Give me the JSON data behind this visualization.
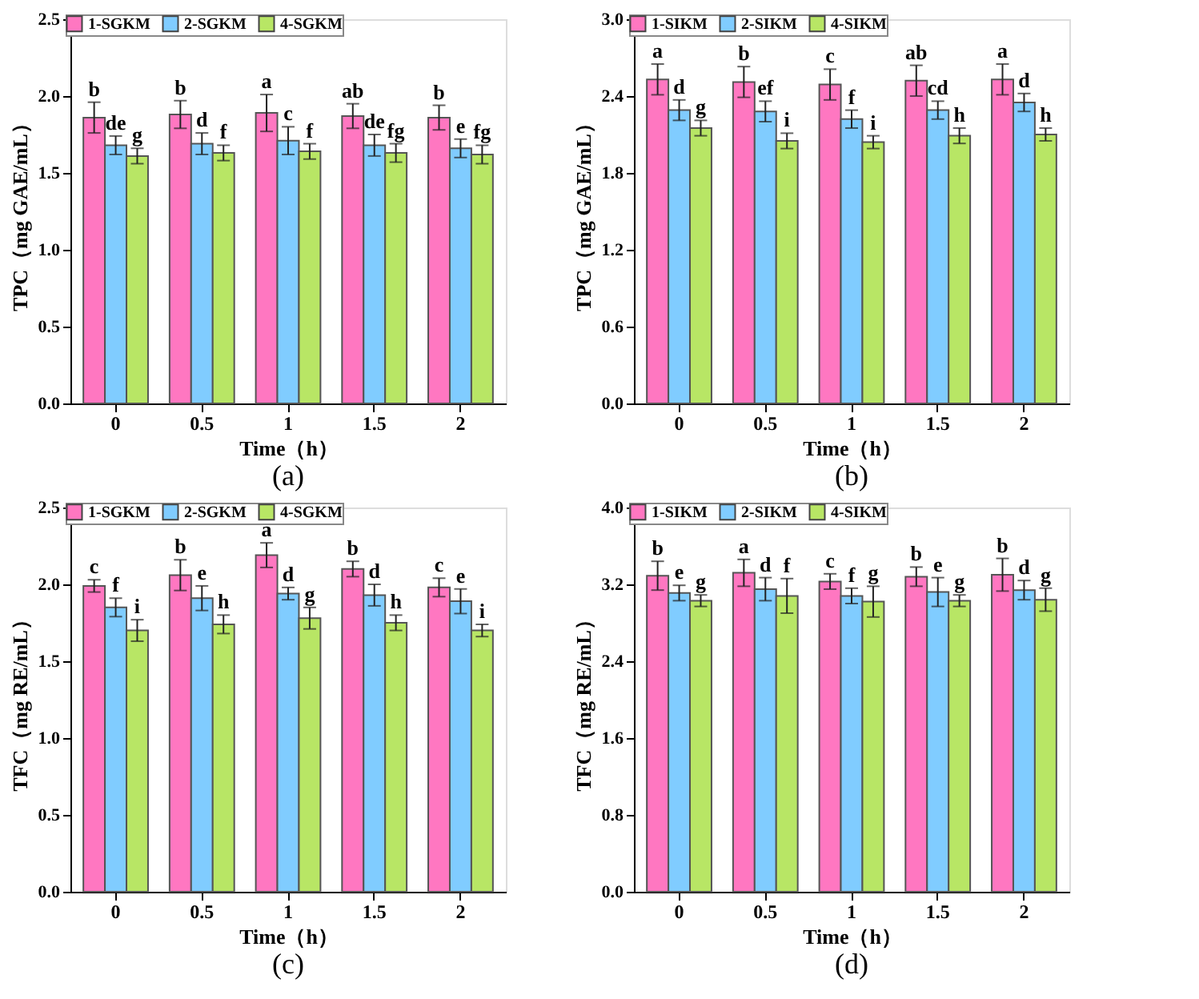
{
  "chart_data": [
    {
      "type": "bar",
      "xlabel": "Time（h）",
      "ylabel": "TPC（mg GAE/mL）",
      "categories": [
        "0",
        "0.5",
        "1",
        "1.5",
        "2"
      ],
      "ylim": [
        0,
        2.5
      ],
      "yticks": [
        {
          "value": 0,
          "label": "0.0"
        },
        0.5,
        {
          "value": 1,
          "label": "1.0"
        },
        1.5,
        {
          "value": 2,
          "label": "2.0"
        },
        2.5
      ],
      "grid": false,
      "legend": "top left",
      "annotations": [
        "(a)"
      ],
      "series": [
        {
          "name": "1-SGKM",
          "color": "#ff77c1",
          "values": [
            1.86,
            1.88,
            1.89,
            1.87,
            1.86
          ],
          "errors": [
            0.1,
            0.09,
            0.12,
            0.08,
            0.08
          ],
          "value_labels": [
            "b",
            "b",
            "a",
            "ab",
            "b"
          ]
        },
        {
          "name": "2-SGKM",
          "color": "#80ccff",
          "values": [
            1.68,
            1.69,
            1.71,
            1.68,
            1.66
          ],
          "errors": [
            0.06,
            0.07,
            0.09,
            0.07,
            0.06
          ],
          "value_labels": [
            "de",
            "d",
            "c",
            "de",
            "e"
          ]
        },
        {
          "name": "4-SGKM",
          "color": "#b8e665",
          "values": [
            1.61,
            1.63,
            1.64,
            1.63,
            1.62
          ],
          "errors": [
            0.05,
            0.05,
            0.05,
            0.06,
            0.06
          ],
          "value_labels": [
            "g",
            "f",
            "f",
            "fg",
            "fg"
          ]
        }
      ]
    },
    {
      "type": "bar",
      "xlabel": "Time（h）",
      "ylabel": "TPC（mg GAE/mL）",
      "categories": [
        "0",
        "0.5",
        "1",
        "1.5",
        "2"
      ],
      "ylim": [
        0,
        3.0
      ],
      "yticks": [
        {
          "value": 0,
          "label": "0.0"
        },
        0.6,
        1.2,
        1.8,
        2.4,
        {
          "value": 3,
          "label": "3.0"
        }
      ],
      "grid": false,
      "legend": "top left",
      "annotations": [
        "(b)"
      ],
      "series": [
        {
          "name": "1-SIKM",
          "color": "#ff77c1",
          "values": [
            2.53,
            2.51,
            2.49,
            2.52,
            2.53
          ],
          "errors": [
            0.12,
            0.12,
            0.12,
            0.12,
            0.12
          ],
          "value_labels": [
            "a",
            "b",
            "c",
            "ab",
            "a"
          ]
        },
        {
          "name": "2-SIKM",
          "color": "#80ccff",
          "values": [
            2.29,
            2.28,
            2.22,
            2.29,
            2.35
          ],
          "errors": [
            0.08,
            0.08,
            0.07,
            0.07,
            0.07
          ],
          "value_labels": [
            "d",
            "ef",
            "f",
            "cd",
            "d"
          ]
        },
        {
          "name": "4-SIKM",
          "color": "#b8e665",
          "values": [
            2.15,
            2.05,
            2.04,
            2.09,
            2.1
          ],
          "errors": [
            0.06,
            0.06,
            0.05,
            0.06,
            0.05
          ],
          "value_labels": [
            "g",
            "i",
            "i",
            "h",
            "h"
          ]
        }
      ]
    },
    {
      "type": "bar",
      "xlabel": "Time（h）",
      "ylabel": "TFC（mg RE/mL）",
      "categories": [
        "0",
        "0.5",
        "1",
        "1.5",
        "2"
      ],
      "ylim": [
        0,
        2.5
      ],
      "yticks": [
        {
          "value": 0,
          "label": "0.0"
        },
        0.5,
        {
          "value": 1,
          "label": "1.0"
        },
        1.5,
        {
          "value": 2,
          "label": "2.0"
        },
        2.5
      ],
      "grid": false,
      "legend": "top left",
      "annotations": [
        "(c)"
      ],
      "series": [
        {
          "name": "1-SGKM",
          "color": "#ff77c1",
          "values": [
            1.99,
            2.06,
            2.19,
            2.1,
            1.98
          ],
          "errors": [
            0.04,
            0.1,
            0.08,
            0.05,
            0.06
          ],
          "value_labels": [
            "c",
            "b",
            "a",
            "b",
            "c"
          ]
        },
        {
          "name": "2-SGKM",
          "color": "#80ccff",
          "values": [
            1.85,
            1.91,
            1.94,
            1.93,
            1.89
          ],
          "errors": [
            0.06,
            0.08,
            0.04,
            0.07,
            0.08
          ],
          "value_labels": [
            "f",
            "e",
            "d",
            "d",
            "e"
          ]
        },
        {
          "name": "4-SGKM",
          "color": "#b8e665",
          "values": [
            1.7,
            1.74,
            1.78,
            1.75,
            1.7
          ],
          "errors": [
            0.07,
            0.06,
            0.07,
            0.05,
            0.04
          ],
          "value_labels": [
            "i",
            "h",
            "g",
            "h",
            "i"
          ]
        }
      ]
    },
    {
      "type": "bar",
      "xlabel": "Time（h）",
      "ylabel": "TFC（mg RE/mL）",
      "categories": [
        "0",
        "0.5",
        "1",
        "1.5",
        "2"
      ],
      "ylim": [
        0,
        4.0
      ],
      "yticks": [
        {
          "value": 0,
          "label": "0.0"
        },
        0.8,
        1.6,
        2.4,
        3.2,
        {
          "value": 4,
          "label": "4.0"
        }
      ],
      "grid": false,
      "legend": "top left",
      "annotations": [
        "(d)"
      ],
      "series": [
        {
          "name": "1-SIKM",
          "color": "#ff77c1",
          "values": [
            3.29,
            3.32,
            3.23,
            3.28,
            3.3
          ],
          "errors": [
            0.15,
            0.14,
            0.08,
            0.1,
            0.17
          ],
          "value_labels": [
            "b",
            "a",
            "c",
            "b",
            "b"
          ]
        },
        {
          "name": "2-SIKM",
          "color": "#80ccff",
          "values": [
            3.11,
            3.15,
            3.08,
            3.12,
            3.14
          ],
          "errors": [
            0.08,
            0.12,
            0.08,
            0.15,
            0.1
          ],
          "value_labels": [
            "e",
            "d",
            "f",
            "e",
            "d"
          ]
        },
        {
          "name": "4-SIKM",
          "color": "#b8e665",
          "values": [
            3.03,
            3.08,
            3.02,
            3.03,
            3.04
          ],
          "errors": [
            0.06,
            0.18,
            0.16,
            0.06,
            0.12
          ],
          "value_labels": [
            "g",
            "f",
            "g",
            "g",
            "g"
          ]
        }
      ]
    }
  ]
}
